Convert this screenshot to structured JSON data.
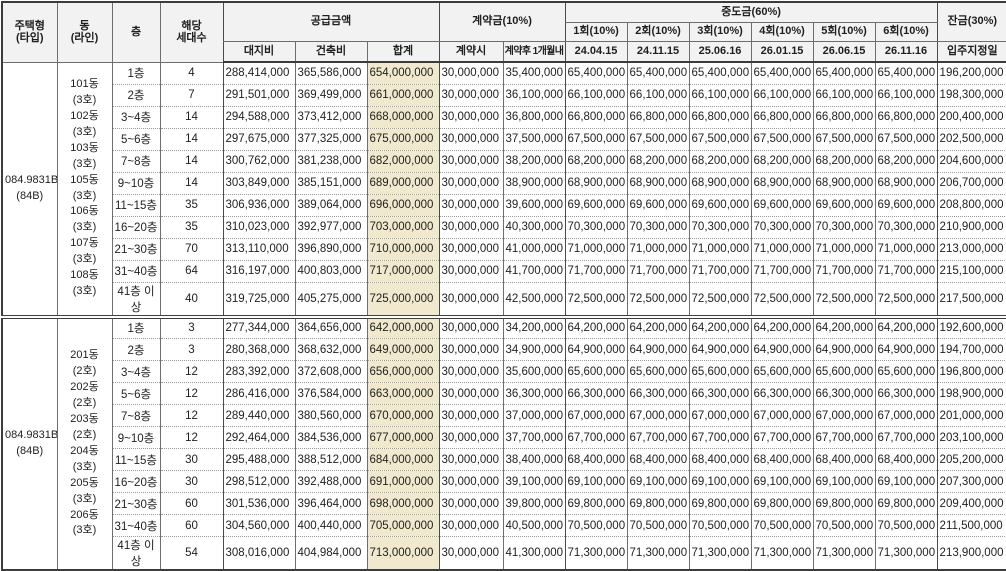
{
  "header": {
    "type_label": "주택형\n(타입)",
    "line_label": "동\n(라인)",
    "floor_label": "층",
    "units_label": "해당\n세대수",
    "supply": {
      "title": "공급금액",
      "cols": [
        "대지비",
        "건축비",
        "합계"
      ]
    },
    "contract": {
      "title": "계약금(10%)",
      "cols": [
        "계약시",
        "계약후 1개월내"
      ]
    },
    "interim": {
      "title": "중도금(60%)",
      "rounds": [
        "1회(10%)",
        "2회(10%)",
        "3회(10%)",
        "4회(10%)",
        "5회(10%)",
        "6회(10%)"
      ],
      "dates": [
        "24.04.15",
        "24.11.15",
        "25.06.16",
        "26.01.15",
        "26.06.15",
        "26.11.16"
      ]
    },
    "balance": {
      "title": "잔금(30%)",
      "sub": "입주지정일"
    }
  },
  "colors": {
    "header_bg": "#f2f2f2",
    "total_col_bg": "#f0e9cd",
    "border": "#3c3c3c"
  },
  "groups": [
    {
      "type": "084.9831B\n(84B)",
      "lines": "101동\n(3호)\n102동\n(3호)\n103동\n(3호)\n105동\n(3호)\n106동\n(3호)\n107동\n(3호)\n108동\n(3호)",
      "rows": [
        {
          "floor": "1층",
          "units": "4",
          "land": "288,414,000",
          "build": "365,586,000",
          "total": "654,000,000",
          "c1": "30,000,000",
          "c2": "35,400,000",
          "inst": [
            "65,400,000",
            "65,400,000",
            "65,400,000",
            "65,400,000",
            "65,400,000",
            "65,400,000"
          ],
          "bal": "196,200,000"
        },
        {
          "floor": "2층",
          "units": "7",
          "land": "291,501,000",
          "build": "369,499,000",
          "total": "661,000,000",
          "c1": "30,000,000",
          "c2": "36,100,000",
          "inst": [
            "66,100,000",
            "66,100,000",
            "66,100,000",
            "66,100,000",
            "66,100,000",
            "66,100,000"
          ],
          "bal": "198,300,000"
        },
        {
          "floor": "3~4층",
          "units": "14",
          "land": "294,588,000",
          "build": "373,412,000",
          "total": "668,000,000",
          "c1": "30,000,000",
          "c2": "36,800,000",
          "inst": [
            "66,800,000",
            "66,800,000",
            "66,800,000",
            "66,800,000",
            "66,800,000",
            "66,800,000"
          ],
          "bal": "200,400,000"
        },
        {
          "floor": "5~6층",
          "units": "14",
          "land": "297,675,000",
          "build": "377,325,000",
          "total": "675,000,000",
          "c1": "30,000,000",
          "c2": "37,500,000",
          "inst": [
            "67,500,000",
            "67,500,000",
            "67,500,000",
            "67,500,000",
            "67,500,000",
            "67,500,000"
          ],
          "bal": "202,500,000"
        },
        {
          "floor": "7~8층",
          "units": "14",
          "land": "300,762,000",
          "build": "381,238,000",
          "total": "682,000,000",
          "c1": "30,000,000",
          "c2": "38,200,000",
          "inst": [
            "68,200,000",
            "68,200,000",
            "68,200,000",
            "68,200,000",
            "68,200,000",
            "68,200,000"
          ],
          "bal": "204,600,000"
        },
        {
          "floor": "9~10층",
          "units": "14",
          "land": "303,849,000",
          "build": "385,151,000",
          "total": "689,000,000",
          "c1": "30,000,000",
          "c2": "38,900,000",
          "inst": [
            "68,900,000",
            "68,900,000",
            "68,900,000",
            "68,900,000",
            "68,900,000",
            "68,900,000"
          ],
          "bal": "206,700,000"
        },
        {
          "floor": "11~15층",
          "units": "35",
          "land": "306,936,000",
          "build": "389,064,000",
          "total": "696,000,000",
          "c1": "30,000,000",
          "c2": "39,600,000",
          "inst": [
            "69,600,000",
            "69,600,000",
            "69,600,000",
            "69,600,000",
            "69,600,000",
            "69,600,000"
          ],
          "bal": "208,800,000"
        },
        {
          "floor": "16~20층",
          "units": "35",
          "land": "310,023,000",
          "build": "392,977,000",
          "total": "703,000,000",
          "c1": "30,000,000",
          "c2": "40,300,000",
          "inst": [
            "70,300,000",
            "70,300,000",
            "70,300,000",
            "70,300,000",
            "70,300,000",
            "70,300,000"
          ],
          "bal": "210,900,000"
        },
        {
          "floor": "21~30층",
          "units": "70",
          "land": "313,110,000",
          "build": "396,890,000",
          "total": "710,000,000",
          "c1": "30,000,000",
          "c2": "41,000,000",
          "inst": [
            "71,000,000",
            "71,000,000",
            "71,000,000",
            "71,000,000",
            "71,000,000",
            "71,000,000"
          ],
          "bal": "213,000,000"
        },
        {
          "floor": "31~40층",
          "units": "64",
          "land": "316,197,000",
          "build": "400,803,000",
          "total": "717,000,000",
          "c1": "30,000,000",
          "c2": "41,700,000",
          "inst": [
            "71,700,000",
            "71,700,000",
            "71,700,000",
            "71,700,000",
            "71,700,000",
            "71,700,000"
          ],
          "bal": "215,100,000"
        },
        {
          "floor": "41층 이상",
          "units": "40",
          "land": "319,725,000",
          "build": "405,275,000",
          "total": "725,000,000",
          "c1": "30,000,000",
          "c2": "42,500,000",
          "inst": [
            "72,500,000",
            "72,500,000",
            "72,500,000",
            "72,500,000",
            "72,500,000",
            "72,500,000"
          ],
          "bal": "217,500,000"
        }
      ]
    },
    {
      "type": "084.9831B\n(84B)",
      "lines": "201동\n(2호)\n202동\n(2호)\n203동\n(2호)\n204동\n(3호)\n205동\n(3호)\n206동\n(3호)",
      "rows": [
        {
          "floor": "1층",
          "units": "3",
          "land": "277,344,000",
          "build": "364,656,000",
          "total": "642,000,000",
          "c1": "30,000,000",
          "c2": "34,200,000",
          "inst": [
            "64,200,000",
            "64,200,000",
            "64,200,000",
            "64,200,000",
            "64,200,000",
            "64,200,000"
          ],
          "bal": "192,600,000"
        },
        {
          "floor": "2층",
          "units": "3",
          "land": "280,368,000",
          "build": "368,632,000",
          "total": "649,000,000",
          "c1": "30,000,000",
          "c2": "34,900,000",
          "inst": [
            "64,900,000",
            "64,900,000",
            "64,900,000",
            "64,900,000",
            "64,900,000",
            "64,900,000"
          ],
          "bal": "194,700,000"
        },
        {
          "floor": "3~4층",
          "units": "12",
          "land": "283,392,000",
          "build": "372,608,000",
          "total": "656,000,000",
          "c1": "30,000,000",
          "c2": "35,600,000",
          "inst": [
            "65,600,000",
            "65,600,000",
            "65,600,000",
            "65,600,000",
            "65,600,000",
            "65,600,000"
          ],
          "bal": "196,800,000"
        },
        {
          "floor": "5~6층",
          "units": "12",
          "land": "286,416,000",
          "build": "376,584,000",
          "total": "663,000,000",
          "c1": "30,000,000",
          "c2": "36,300,000",
          "inst": [
            "66,300,000",
            "66,300,000",
            "66,300,000",
            "66,300,000",
            "66,300,000",
            "66,300,000"
          ],
          "bal": "198,900,000"
        },
        {
          "floor": "7~8층",
          "units": "12",
          "land": "289,440,000",
          "build": "380,560,000",
          "total": "670,000,000",
          "c1": "30,000,000",
          "c2": "37,000,000",
          "inst": [
            "67,000,000",
            "67,000,000",
            "67,000,000",
            "67,000,000",
            "67,000,000",
            "67,000,000"
          ],
          "bal": "201,000,000"
        },
        {
          "floor": "9~10층",
          "units": "12",
          "land": "292,464,000",
          "build": "384,536,000",
          "total": "677,000,000",
          "c1": "30,000,000",
          "c2": "37,700,000",
          "inst": [
            "67,700,000",
            "67,700,000",
            "67,700,000",
            "67,700,000",
            "67,700,000",
            "67,700,000"
          ],
          "bal": "203,100,000"
        },
        {
          "floor": "11~15층",
          "units": "30",
          "land": "295,488,000",
          "build": "388,512,000",
          "total": "684,000,000",
          "c1": "30,000,000",
          "c2": "38,400,000",
          "inst": [
            "68,400,000",
            "68,400,000",
            "68,400,000",
            "68,400,000",
            "68,400,000",
            "68,400,000"
          ],
          "bal": "205,200,000"
        },
        {
          "floor": "16~20층",
          "units": "30",
          "land": "298,512,000",
          "build": "392,488,000",
          "total": "691,000,000",
          "c1": "30,000,000",
          "c2": "39,100,000",
          "inst": [
            "69,100,000",
            "69,100,000",
            "69,100,000",
            "69,100,000",
            "69,100,000",
            "69,100,000"
          ],
          "bal": "207,300,000"
        },
        {
          "floor": "21~30층",
          "units": "60",
          "land": "301,536,000",
          "build": "396,464,000",
          "total": "698,000,000",
          "c1": "30,000,000",
          "c2": "39,800,000",
          "inst": [
            "69,800,000",
            "69,800,000",
            "69,800,000",
            "69,800,000",
            "69,800,000",
            "69,800,000"
          ],
          "bal": "209,400,000"
        },
        {
          "floor": "31~40층",
          "units": "60",
          "land": "304,560,000",
          "build": "400,440,000",
          "total": "705,000,000",
          "c1": "30,000,000",
          "c2": "40,500,000",
          "inst": [
            "70,500,000",
            "70,500,000",
            "70,500,000",
            "70,500,000",
            "70,500,000",
            "70,500,000"
          ],
          "bal": "211,500,000"
        },
        {
          "floor": "41층 이상",
          "units": "54",
          "land": "308,016,000",
          "build": "404,984,000",
          "total": "713,000,000",
          "c1": "30,000,000",
          "c2": "41,300,000",
          "inst": [
            "71,300,000",
            "71,300,000",
            "71,300,000",
            "71,300,000",
            "71,300,000",
            "71,300,000"
          ],
          "bal": "213,900,000"
        }
      ]
    }
  ]
}
